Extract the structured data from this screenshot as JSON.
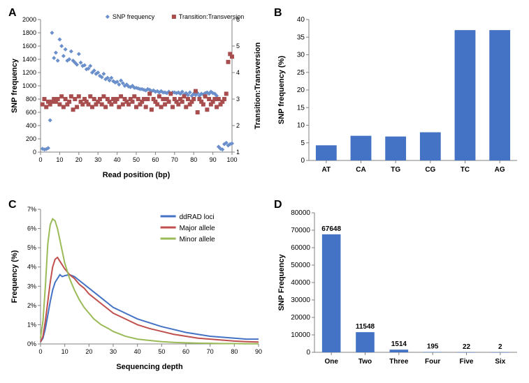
{
  "panelA": {
    "label": "A",
    "type": "scatter",
    "xlabel": "Read position (bp)",
    "ylabel_left": "SNP frequency",
    "ylabel_right": "Transition:Transversion",
    "xlim": [
      0,
      100
    ],
    "ylim_left": [
      0,
      2000
    ],
    "ylim_right": [
      1,
      6
    ],
    "xtick_step": 10,
    "ytick_left_step": 200,
    "ytick_right_step": 1,
    "axis_color": "#808080",
    "tick_color": "#808080",
    "label_fontsize": 11,
    "tick_fontsize": 9,
    "marker_size": 3,
    "legend": {
      "items": [
        {
          "label": "SNP frequency",
          "color": "#6a8fcb",
          "marker": "diamond"
        },
        {
          "label": "Transition:Transversion",
          "color": "#a94e4e",
          "marker": "square"
        }
      ],
      "fontsize": 9
    },
    "series_snp": {
      "x": [
        1,
        2,
        3,
        4,
        5,
        6,
        7,
        8,
        9,
        10,
        11,
        12,
        13,
        14,
        15,
        16,
        17,
        18,
        19,
        20,
        21,
        22,
        23,
        24,
        25,
        26,
        27,
        28,
        29,
        30,
        31,
        32,
        33,
        34,
        35,
        36,
        37,
        38,
        39,
        40,
        41,
        42,
        43,
        44,
        45,
        46,
        47,
        48,
        49,
        50,
        51,
        52,
        53,
        54,
        55,
        56,
        57,
        58,
        59,
        60,
        61,
        62,
        63,
        64,
        65,
        66,
        67,
        68,
        69,
        70,
        71,
        72,
        73,
        74,
        75,
        76,
        77,
        78,
        79,
        80,
        81,
        82,
        83,
        84,
        85,
        86,
        87,
        88,
        89,
        90,
        91,
        92,
        93,
        94,
        95,
        96,
        97,
        98,
        99,
        100
      ],
      "y": [
        50,
        40,
        45,
        60,
        480,
        1800,
        1420,
        1500,
        1380,
        1700,
        1600,
        1450,
        1550,
        1380,
        1400,
        1520,
        1380,
        1350,
        1320,
        1480,
        1350,
        1300,
        1310,
        1250,
        1260,
        1300,
        1200,
        1230,
        1180,
        1200,
        1150,
        1130,
        1180,
        1100,
        1120,
        1080,
        1120,
        1070,
        1050,
        1060,
        1020,
        1080,
        1040,
        1000,
        1020,
        990,
        980,
        1000,
        970,
        970,
        960,
        950,
        950,
        940,
        930,
        950,
        940,
        920,
        930,
        910,
        920,
        900,
        920,
        900,
        900,
        890,
        910,
        880,
        900,
        900,
        890,
        900,
        880,
        910,
        870,
        890,
        860,
        900,
        850,
        880,
        860,
        890,
        850,
        880,
        870,
        890,
        900,
        880,
        910,
        890,
        880,
        850,
        80,
        50,
        40,
        120,
        140,
        100,
        120,
        130
      ],
      "color": "#6a8fcb"
    },
    "series_ratio": {
      "x": [
        1,
        2,
        3,
        4,
        5,
        6,
        7,
        8,
        9,
        10,
        11,
        12,
        13,
        14,
        15,
        16,
        17,
        18,
        19,
        20,
        21,
        22,
        23,
        24,
        25,
        26,
        27,
        28,
        29,
        30,
        31,
        32,
        33,
        34,
        35,
        36,
        37,
        38,
        39,
        40,
        41,
        42,
        43,
        44,
        45,
        46,
        47,
        48,
        49,
        50,
        51,
        52,
        53,
        54,
        55,
        56,
        57,
        58,
        59,
        60,
        61,
        62,
        63,
        64,
        65,
        66,
        67,
        68,
        69,
        70,
        71,
        72,
        73,
        74,
        75,
        76,
        77,
        78,
        79,
        80,
        81,
        82,
        83,
        84,
        85,
        86,
        87,
        88,
        89,
        90,
        91,
        92,
        93,
        94,
        95,
        96,
        97,
        98,
        99,
        100
      ],
      "y": [
        2.8,
        3.0,
        2.7,
        2.9,
        2.8,
        2.9,
        3.0,
        2.9,
        3.0,
        2.8,
        3.1,
        2.7,
        3.0,
        2.8,
        2.9,
        3.1,
        2.6,
        3.0,
        2.7,
        3.1,
        2.9,
        2.8,
        3.0,
        2.9,
        2.8,
        3.1,
        2.7,
        3.0,
        2.8,
        2.9,
        3.0,
        2.8,
        3.1,
        2.7,
        3.0,
        2.9,
        2.8,
        3.0,
        2.9,
        3.0,
        2.7,
        3.1,
        2.8,
        3.0,
        2.9,
        2.8,
        3.0,
        2.9,
        3.1,
        2.7,
        3.0,
        2.8,
        2.9,
        3.0,
        2.7,
        3.0,
        3.2,
        2.6,
        3.0,
        2.9,
        2.8,
        3.1,
        2.7,
        3.0,
        2.8,
        3.0,
        2.9,
        3.2,
        2.7,
        3.0,
        2.9,
        2.8,
        3.0,
        2.9,
        3.1,
        2.7,
        3.0,
        2.8,
        2.9,
        3.0,
        3.3,
        2.5,
        3.0,
        2.9,
        2.8,
        3.1,
        2.6,
        3.0,
        2.8,
        2.9,
        3.0,
        2.7,
        3.0,
        2.8,
        2.9,
        3.0,
        3.2,
        4.4,
        4.7,
        4.6
      ],
      "color": "#a94e4e"
    }
  },
  "panelB": {
    "label": "B",
    "type": "bar",
    "xlabel": "",
    "ylabel": "SNP  frequency (%)",
    "categories": [
      "AT",
      "CA",
      "TG",
      "CG",
      "TC",
      "AG"
    ],
    "values": [
      4.3,
      7,
      6.8,
      8,
      37,
      37
    ],
    "bar_color": "#4472c4",
    "ylim": [
      0,
      40
    ],
    "ytick_step": 5,
    "axis_color": "#808080",
    "label_fontsize": 11,
    "tick_fontsize": 10,
    "bar_width": 0.6
  },
  "panelC": {
    "label": "C",
    "type": "line",
    "xlabel": "Sequencing depth",
    "ylabel": "Frequency (%)",
    "xlim": [
      0,
      90
    ],
    "ylim": [
      0,
      7
    ],
    "xtick_step": 10,
    "ytick_step": 1,
    "axis_color": "#808080",
    "label_fontsize": 11,
    "tick_fontsize": 9,
    "line_width": 2,
    "legend_fontsize": 10,
    "series": [
      {
        "name": "ddRAD loci",
        "color": "#4472c4",
        "x": [
          0,
          1,
          2,
          3,
          4,
          5,
          6,
          7,
          8,
          9,
          10,
          12,
          14,
          16,
          18,
          20,
          22,
          25,
          28,
          30,
          35,
          40,
          45,
          50,
          55,
          60,
          65,
          70,
          75,
          80,
          85,
          90
        ],
        "y": [
          0.1,
          0.3,
          0.8,
          1.5,
          2.2,
          2.8,
          3.2,
          3.4,
          3.6,
          3.5,
          3.55,
          3.6,
          3.5,
          3.3,
          3.1,
          2.9,
          2.7,
          2.4,
          2.1,
          1.9,
          1.6,
          1.3,
          1.1,
          0.9,
          0.75,
          0.6,
          0.5,
          0.4,
          0.35,
          0.3,
          0.25,
          0.25
        ]
      },
      {
        "name": "Major allele",
        "color": "#c0504d",
        "x": [
          0,
          1,
          2,
          3,
          4,
          5,
          6,
          7,
          8,
          9,
          10,
          12,
          14,
          16,
          18,
          20,
          22,
          25,
          28,
          30,
          35,
          40,
          45,
          50,
          55,
          60,
          65,
          70,
          75,
          80,
          85,
          90
        ],
        "y": [
          0.1,
          0.4,
          1.2,
          2.2,
          3.2,
          4.0,
          4.4,
          4.5,
          4.3,
          4.1,
          3.9,
          3.6,
          3.4,
          3.1,
          2.9,
          2.6,
          2.4,
          2.1,
          1.8,
          1.6,
          1.3,
          1.0,
          0.8,
          0.65,
          0.5,
          0.4,
          0.3,
          0.25,
          0.2,
          0.15,
          0.12,
          0.1
        ]
      },
      {
        "name": "Minor allele",
        "color": "#9bbb59",
        "x": [
          0,
          1,
          2,
          3,
          4,
          5,
          6,
          7,
          8,
          9,
          10,
          12,
          14,
          16,
          18,
          20,
          22,
          25,
          28,
          30,
          35,
          40,
          45,
          50,
          55,
          60,
          65,
          70,
          75,
          80,
          85,
          90
        ],
        "y": [
          0.3,
          1.2,
          3.0,
          5.2,
          6.2,
          6.5,
          6.4,
          6.0,
          5.4,
          4.8,
          4.2,
          3.4,
          2.8,
          2.3,
          1.9,
          1.6,
          1.3,
          1.0,
          0.8,
          0.65,
          0.4,
          0.25,
          0.18,
          0.12,
          0.08,
          0.06,
          0.04,
          0.03,
          0.02,
          0.02,
          0.01,
          0.01
        ]
      }
    ]
  },
  "panelD": {
    "label": "D",
    "type": "bar",
    "ylabel": "SNP Frequency",
    "categories": [
      "One",
      "Two",
      "Three",
      "Four",
      "Five",
      "Six"
    ],
    "values": [
      67648,
      11548,
      1514,
      195,
      22,
      2
    ],
    "value_labels": [
      "67648",
      "11548",
      "1514",
      "195",
      "22",
      "2"
    ],
    "bar_color": "#4472c4",
    "ylim": [
      0,
      80000
    ],
    "ytick_step": 10000,
    "axis_color": "#808080",
    "label_fontsize": 11,
    "tick_fontsize": 10,
    "value_label_fontsize": 10,
    "bar_width": 0.55
  }
}
